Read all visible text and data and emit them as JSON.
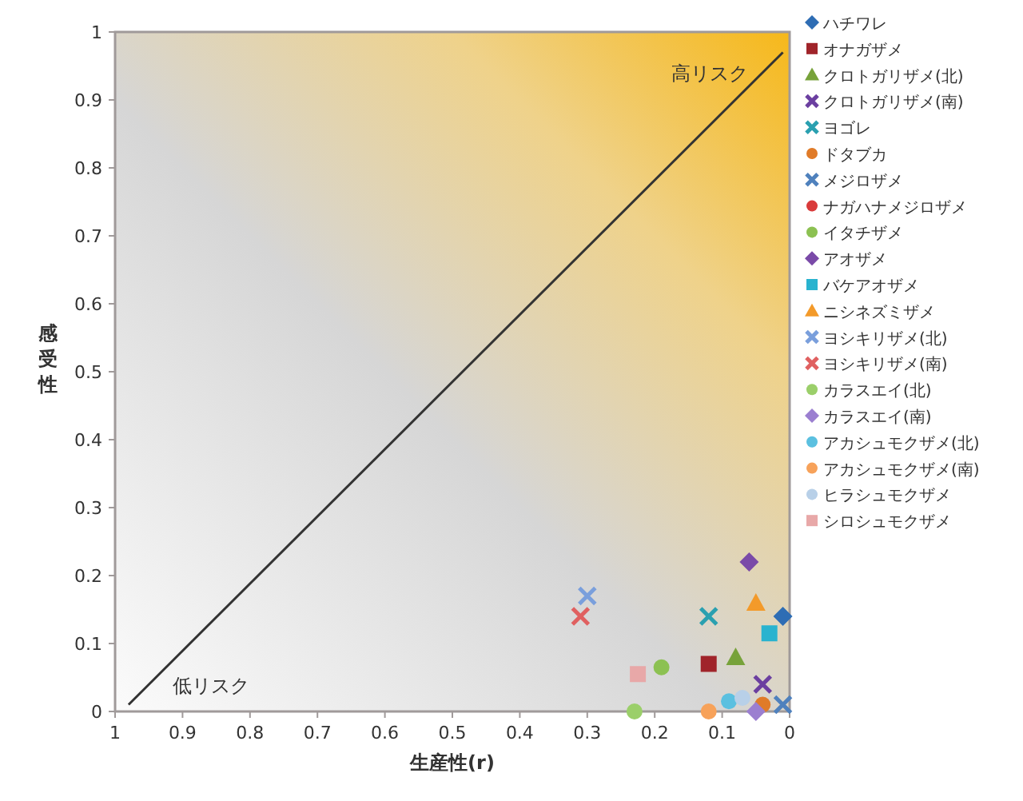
{
  "chart_data": {
    "type": "scatter",
    "xlabel": "生産性(r)",
    "ylabel": "感受性",
    "xlim": [
      1,
      0
    ],
    "ylim": [
      0,
      1
    ],
    "xticks": [
      1,
      0.9,
      0.8,
      0.7,
      0.6,
      0.5,
      0.4,
      0.3,
      0.2,
      0.1,
      0
    ],
    "yticks": [
      0,
      0.1,
      0.2,
      0.3,
      0.4,
      0.5,
      0.6,
      0.7,
      0.8,
      0.9,
      1
    ],
    "legend": "right",
    "grid": false,
    "annotations": [
      "高リスク",
      "低リスク"
    ],
    "series": [
      {
        "type": "line",
        "color": "#333333",
        "marker": "none",
        "x": [
          0.98,
          0.01
        ],
        "values": [
          0.01,
          0.97
        ]
      },
      {
        "name": "ハチワレ",
        "color": "#2e6db4",
        "marker": "diamond",
        "x": [
          0.01
        ],
        "values": [
          0.14
        ]
      },
      {
        "name": "オナガザメ",
        "color": "#a0242a",
        "marker": "square",
        "x": [
          0.12
        ],
        "values": [
          0.07
        ]
      },
      {
        "name": "クロトガリザメ(北)",
        "color": "#77a23a",
        "marker": "triangle",
        "x": [
          0.08
        ],
        "values": [
          0.08
        ]
      },
      {
        "name": "クロトガリザメ(南)",
        "color": "#6b3fa0",
        "marker": "cross",
        "x": [
          0.04
        ],
        "values": [
          0.04
        ]
      },
      {
        "name": "ヨゴレ",
        "color": "#2aa0b0",
        "marker": "cross",
        "x": [
          0.12
        ],
        "values": [
          0.14
        ]
      },
      {
        "name": "ドタブカ",
        "color": "#e07b28",
        "marker": "circle",
        "x": [
          0.04
        ],
        "values": [
          0.01
        ]
      },
      {
        "name": "メジロザメ",
        "color": "#4f81bd",
        "marker": "cross",
        "x": [
          0.01
        ],
        "values": [
          0.01
        ]
      },
      {
        "name": "ナガハナメジロザメ",
        "color": "#d93b3b",
        "x": [
          null
        ],
        "values": [
          null
        ]
      },
      {
        "name": "イタチザメ",
        "color": "#8cc152",
        "x": [
          0.19
        ],
        "values": [
          0.065
        ]
      },
      {
        "name": "アオザメ",
        "color": "#7a4aa8",
        "marker": "diamond",
        "x": [
          0.06
        ],
        "values": [
          0.22
        ]
      },
      {
        "name": "バケアオザメ",
        "color": "#29b3cf",
        "marker": "square",
        "x": [
          0.03
        ],
        "values": [
          0.115
        ]
      },
      {
        "name": "ニシネズミザメ",
        "color": "#f39a2a",
        "marker": "triangle",
        "x": [
          0.05
        ],
        "values": [
          0.16
        ]
      },
      {
        "name": "ヨシキリザメ(北)",
        "color": "#7a9fdc",
        "marker": "cross",
        "x": [
          0.3
        ],
        "values": [
          0.17
        ]
      },
      {
        "name": "ヨシキリザメ(南)",
        "color": "#e06060",
        "marker": "cross",
        "x": [
          0.31
        ],
        "values": [
          0.14
        ]
      },
      {
        "name": "カラスエイ(北)",
        "color": "#9bcf6a",
        "marker": "circle",
        "x": [
          0.23
        ],
        "values": [
          0
        ]
      },
      {
        "name": "カラスエイ(南)",
        "color": "#9b7fd0",
        "marker": "diamond",
        "x": [
          0.05
        ],
        "values": [
          0
        ]
      },
      {
        "name": "アカシュモクザメ(北)",
        "color": "#5bc0e0",
        "x": [
          0.09
        ],
        "values": [
          0.015
        ]
      },
      {
        "name": "アカシュモクザメ(南)",
        "color": "#f7a25a",
        "x": [
          0.12
        ],
        "values": [
          0
        ]
      },
      {
        "name": "ヒラシュモクザメ",
        "color": "#b8d0e8",
        "marker": "circle",
        "x": [
          0.07
        ],
        "values": [
          0.02
        ]
      },
      {
        "name": "シロシュモクザメ",
        "color": "#e8a8a8",
        "marker": "square",
        "x": [
          0.225
        ],
        "values": [
          0.055
        ]
      }
    ]
  }
}
